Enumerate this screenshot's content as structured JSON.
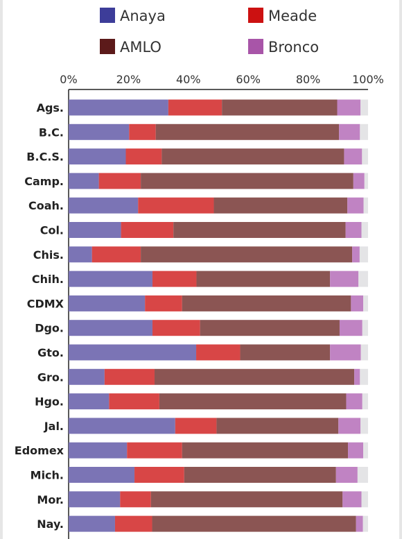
{
  "chart_data": {
    "type": "bar",
    "orientation": "horizontal",
    "stacked": true,
    "legend": {
      "placement": "top",
      "entries": [
        {
          "name": "Anaya",
          "color": "#3d3d99"
        },
        {
          "name": "Meade",
          "color": "#cc1111"
        },
        {
          "name": "AMLO",
          "color": "#5c1a1a"
        },
        {
          "name": "Bronco",
          "color": "#a855a8"
        }
      ]
    },
    "x_ticks": [
      "0%",
      "20%",
      "40%",
      "60%",
      "80%",
      "100%"
    ],
    "xlim": [
      0,
      100
    ],
    "categories": [
      "Ags.",
      "B.C.",
      "B.C.S.",
      "Camp.",
      "Coah.",
      "Col.",
      "Chis.",
      "Chih.",
      "CDMX",
      "Dgo.",
      "Gto.",
      "Gro.",
      "Hgo.",
      "Jal.",
      "Edomex",
      "Mich.",
      "Mor.",
      "Nay."
    ],
    "series": [
      {
        "name": "Anaya",
        "color": "#7b74b5",
        "values": [
          33.3,
          20.2,
          19.1,
          10.1,
          23.2,
          17.5,
          7.8,
          28.0,
          25.5,
          28.0,
          42.6,
          12.0,
          13.5,
          35.6,
          19.5,
          22.0,
          17.2,
          15.5
        ]
      },
      {
        "name": "Meade",
        "color": "#d84646",
        "values": [
          17.9,
          8.9,
          12.0,
          14.0,
          25.3,
          17.5,
          16.3,
          14.7,
          12.4,
          15.9,
          14.7,
          16.7,
          16.8,
          13.8,
          18.4,
          16.6,
          10.3,
          12.4
        ]
      },
      {
        "name": "AMLO",
        "color": "#8b5553",
        "values": [
          38.5,
          61.2,
          60.9,
          71.0,
          44.6,
          57.5,
          70.6,
          44.6,
          56.4,
          46.6,
          30.0,
          66.7,
          62.4,
          40.7,
          55.4,
          50.7,
          64.0,
          68.1
        ]
      },
      {
        "name": "Bronco",
        "color": "#c083c3",
        "values": [
          7.8,
          7.0,
          6.0,
          3.7,
          5.4,
          5.3,
          2.5,
          9.5,
          4.1,
          7.6,
          10.3,
          1.9,
          5.4,
          7.4,
          5.1,
          7.2,
          6.3,
          2.3
        ]
      },
      {
        "name": "",
        "color": "#e4e4e6",
        "values": [
          2.5,
          2.7,
          2.0,
          1.2,
          1.5,
          2.2,
          2.8,
          3.2,
          1.6,
          1.9,
          2.4,
          2.7,
          1.9,
          2.5,
          1.6,
          3.5,
          2.2,
          1.7
        ]
      }
    ]
  }
}
